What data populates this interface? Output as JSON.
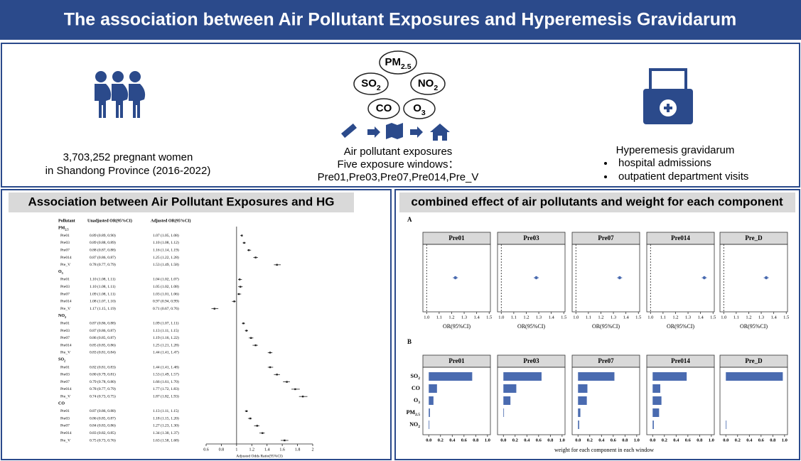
{
  "title": "The association between Air Pollutant Exposures and Hyperemesis Gravidarum",
  "cohort": {
    "lines": [
      "3,703,252 pregnant women",
      "in Shandong Province (2016-2022)"
    ]
  },
  "exposure": {
    "pollutants": [
      {
        "name": "PM",
        "sub": "2.5"
      },
      {
        "name": "SO",
        "sub": "2"
      },
      {
        "name": "NO",
        "sub": "2"
      },
      {
        "name": "CO"
      },
      {
        "name": "O",
        "sub": "3"
      }
    ],
    "lines": [
      "Air pollutant exposures",
      "Five exposure windows：",
      "Pre01,Pre03,Pre07,Pre014,Pre_V"
    ]
  },
  "outcome": {
    "title": "Hyperemesis gravidarum",
    "bullets": [
      "hospital admissions",
      "outpatient department visits"
    ]
  },
  "forest": {
    "title": "Association between Air Pollutant Exposures and HG",
    "columns": [
      "Pollutant",
      "Unadjusted OR(95%CI)",
      "Adjusted OR(95%CI)"
    ],
    "groups": [
      {
        "pollutant": {
          "name": "PM",
          "sub": "2.5"
        },
        "rows": [
          {
            "window": "Pre01",
            "unadjusted": "0.89 (0.89, 0.90)",
            "adjusted_label": "1.07 (1.05, 1.08)",
            "adjusted": [
              1.07,
              1.05,
              1.08
            ]
          },
          {
            "window": "Pre03",
            "unadjusted": "0.89 (0.88, 0.89)",
            "adjusted_label": "1.10 (1.08, 1.12)",
            "adjusted": [
              1.1,
              1.08,
              1.12
            ]
          },
          {
            "window": "Pre07",
            "unadjusted": "0.88 (0.87, 0.88)",
            "adjusted_label": "1.16 (1.14, 1.19)",
            "adjusted": [
              1.16,
              1.14,
              1.19
            ]
          },
          {
            "window": "Pre014",
            "unadjusted": "0.87 (0.86, 0.87)",
            "adjusted_label": "1.25 (1.22, 1.28)",
            "adjusted": [
              1.25,
              1.22,
              1.28
            ]
          },
          {
            "window": "Pre_V",
            "unadjusted": "0.78 (0.77, 0.79)",
            "adjusted_label": "1.53 (1.49, 1.58)",
            "adjusted": [
              1.53,
              1.49,
              1.58
            ]
          }
        ]
      },
      {
        "pollutant": {
          "name": "O",
          "sub": "3"
        },
        "rows": [
          {
            "window": "Pre01",
            "unadjusted": "1.10 (1.08, 1.11)",
            "adjusted_label": "1.04 (1.02, 1.07)",
            "adjusted": [
              1.04,
              1.02,
              1.07
            ]
          },
          {
            "window": "Pre03",
            "unadjusted": "1.10 (1.08, 1.11)",
            "adjusted_label": "1.05 (1.02, 1.08)",
            "adjusted": [
              1.05,
              1.02,
              1.08
            ]
          },
          {
            "window": "Pre07",
            "unadjusted": "1.09 (1.08, 1.11)",
            "adjusted_label": "1.03 (1.01, 1.06)",
            "adjusted": [
              1.03,
              1.01,
              1.06
            ]
          },
          {
            "window": "Pre014",
            "unadjusted": "1.08 (1.07, 1.10)",
            "adjusted_label": "0.97 (0.94, 0.99)",
            "adjusted": [
              0.97,
              0.94,
              0.99
            ]
          },
          {
            "window": "Pre_V",
            "unadjusted": "1.17 (1.15, 1.19)",
            "adjusted_label": "0.71 (0.67, 0.76)",
            "adjusted": [
              0.71,
              0.67,
              0.76
            ]
          }
        ]
      },
      {
        "pollutant": {
          "name": "NO",
          "sub": "2"
        },
        "rows": [
          {
            "window": "Pre01",
            "unadjusted": "0.87 (0.86, 0.88)",
            "adjusted_label": "1.09 (1.07, 1.11)",
            "adjusted": [
              1.09,
              1.07,
              1.11
            ]
          },
          {
            "window": "Pre03",
            "unadjusted": "0.87 (0.86, 0.87)",
            "adjusted_label": "1.13 (1.11, 1.15)",
            "adjusted": [
              1.13,
              1.11,
              1.15
            ]
          },
          {
            "window": "Pre07",
            "unadjusted": "0.86 (0.85, 0.87)",
            "adjusted_label": "1.19 (1.16, 1.22)",
            "adjusted": [
              1.19,
              1.16,
              1.22
            ]
          },
          {
            "window": "Pre014",
            "unadjusted": "0.85 (0.85, 0.86)",
            "adjusted_label": "1.25 (1.21, 1.28)",
            "adjusted": [
              1.25,
              1.21,
              1.28
            ]
          },
          {
            "window": "Pre_V",
            "unadjusted": "0.83 (0.81, 0.84)",
            "adjusted_label": "1.44 (1.41, 1.47)",
            "adjusted": [
              1.44,
              1.41,
              1.47
            ]
          }
        ]
      },
      {
        "pollutant": {
          "name": "SO",
          "sub": "2"
        },
        "rows": [
          {
            "window": "Pre01",
            "unadjusted": "0.82 (0.81, 0.83)",
            "adjusted_label": "1.44 (1.41, 1.48)",
            "adjusted": [
              1.44,
              1.41,
              1.48
            ]
          },
          {
            "window": "Pre03",
            "unadjusted": "0.80 (0.79, 0.81)",
            "adjusted_label": "1.53 (1.49, 1.57)",
            "adjusted": [
              1.53,
              1.49,
              1.57
            ]
          },
          {
            "window": "Pre07",
            "unadjusted": "0.79 (0.78, 0.80)",
            "adjusted_label": "1.66 (1.61, 1.70)",
            "adjusted": [
              1.66,
              1.61,
              1.7
            ]
          },
          {
            "window": "Pre014",
            "unadjusted": "0.78 (0.77, 0.79)",
            "adjusted_label": "1.77 (1.72, 1.83)",
            "adjusted": [
              1.77,
              1.72,
              1.83
            ]
          },
          {
            "window": "Pre_V",
            "unadjusted": "0.74 (0.73, 0.75)",
            "adjusted_label": "1.87 (1.82, 1.93)",
            "adjusted": [
              1.87,
              1.82,
              1.93
            ]
          }
        ]
      },
      {
        "pollutant": {
          "name": "CO"
        },
        "rows": [
          {
            "window": "Pre01",
            "unadjusted": "0.87 (0.86, 0.88)",
            "adjusted_label": "1.13 (1.11, 1.15)",
            "adjusted": [
              1.13,
              1.11,
              1.15
            ]
          },
          {
            "window": "Pre03",
            "unadjusted": "0.86 (0.85, 0.87)",
            "adjusted_label": "1.18 (1.15, 1.20)",
            "adjusted": [
              1.18,
              1.15,
              1.2
            ]
          },
          {
            "window": "Pre07",
            "unadjusted": "0.84 (0.83, 0.86)",
            "adjusted_label": "1.27 (1.23, 1.30)",
            "adjusted": [
              1.27,
              1.23,
              1.3
            ]
          },
          {
            "window": "Pre014",
            "unadjusted": "0.83 (0.82, 0.85)",
            "adjusted_label": "1.34 (1.30, 1.37)",
            "adjusted": [
              1.34,
              1.3,
              1.37
            ]
          },
          {
            "window": "Pre_V",
            "unadjusted": "0.75 (0.73, 0.76)",
            "adjusted_label": "1.63 (1.58, 1.68)",
            "adjusted": [
              1.63,
              1.58,
              1.68
            ]
          }
        ]
      }
    ],
    "xlim": [
      0.6,
      2
    ],
    "xticks": [
      0.6,
      0.8,
      1,
      1.2,
      1.4,
      1.6,
      1.8,
      2
    ],
    "reference": 1,
    "xlabel": "Adjusted Odds Ratio(95%CI)"
  },
  "combined_title": "combined effect of air pollutants and weight for each component",
  "chart_data": [
    {
      "type": "forest",
      "label": "A",
      "panels": [
        {
          "title": "Pre01",
          "estimate": [
            1.23,
            1.21,
            1.25
          ]
        },
        {
          "title": "Pre03",
          "estimate": [
            1.28,
            1.26,
            1.3
          ]
        },
        {
          "title": "Pre07",
          "estimate": [
            1.35,
            1.33,
            1.37
          ]
        },
        {
          "title": "Pre014",
          "estimate": [
            1.43,
            1.41,
            1.45
          ]
        },
        {
          "title": "Pre_D",
          "estimate": [
            1.34,
            1.32,
            1.36
          ]
        }
      ],
      "xlim": [
        0.97,
        1.51
      ],
      "xticks": [
        {
          "value": 1,
          "label": "1.0"
        },
        1.1,
        1.2,
        1.3,
        1.4,
        1.5
      ],
      "reference": 1,
      "xlabel": "OR(95%CI)",
      "color": "#4a6bb0"
    },
    {
      "type": "bar",
      "label": "B",
      "categories": [
        {
          "name": "SO",
          "sub": "2"
        },
        {
          "name": "CO"
        },
        {
          "name": "O",
          "sub": "3"
        },
        {
          "name": "PM",
          "sub": "2.5"
        },
        {
          "name": "NO",
          "sub": "2"
        }
      ],
      "panels": [
        {
          "title": "Pre01",
          "values": [
            0.74,
            0.14,
            0.08,
            0.02,
            0.01
          ]
        },
        {
          "title": "Pre03",
          "values": [
            0.65,
            0.22,
            0.12,
            0.01,
            0
          ]
        },
        {
          "title": "Pre07",
          "values": [
            0.62,
            0.16,
            0.15,
            0.04,
            0.02
          ]
        },
        {
          "title": "Pre014",
          "values": [
            0.58,
            0.13,
            0.15,
            0.11,
            0.02
          ]
        },
        {
          "title": "Pre_D",
          "values": [
            0.97,
            0,
            0,
            0,
            0.01
          ]
        }
      ],
      "xlim": [
        -0.1,
        1.05
      ],
      "xticks": [
        {
          "value": 0,
          "label": "0.0"
        },
        0.2,
        0.4,
        0.6,
        0.8,
        {
          "value": 1,
          "label": "1.0"
        }
      ],
      "xlabel": "weight for each component  in each window",
      "color": "#4a6bb0"
    }
  ]
}
